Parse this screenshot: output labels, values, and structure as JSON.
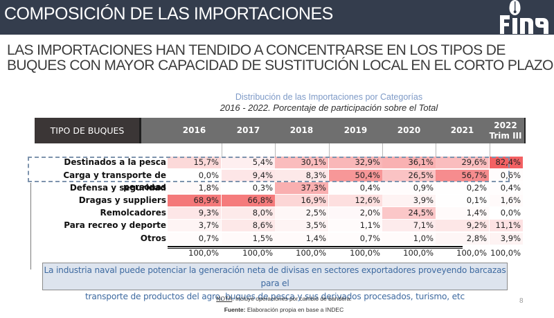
{
  "header": {
    "title": "COMPOSICIÓN DE LAS IMPORTACIONES",
    "logo_text": "FINA"
  },
  "subtitle": {
    "line1": "LAS IMPORTACIONES HAN TENDIDO A CONCENTRARSE EN LOS TIPOS DE",
    "line2": "BUQUES CON MAYOR CAPACIDAD DE SUSTITUCIÓN LOCAL EN EL CORTO PLAZO"
  },
  "table": {
    "title": "Distribución de las Importaciones por Categorías",
    "subtitle": "2016 - 2022. Porcentaje de participación sobre el Total",
    "row_header": "TIPO DE BUQUES",
    "columns": [
      "2016",
      "2017",
      "2018",
      "2019",
      "2020",
      "2021",
      "2022 Trim III"
    ],
    "highlight_color": "#f2595b",
    "rows": [
      {
        "label": "Destinados a la pesca",
        "values": [
          "15,7%",
          "5,4%",
          "30,1%",
          "32,9%",
          "36,1%",
          "29,6%",
          "82,4%"
        ],
        "numeric": [
          15.7,
          5.4,
          30.1,
          32.9,
          36.1,
          29.6,
          82.4
        ]
      },
      {
        "label": "Carga y transporte de personas",
        "values": [
          "0,0%",
          "9,4%",
          "8,3%",
          "50,4%",
          "26,5%",
          "56,7%",
          "0,6%"
        ],
        "numeric": [
          0.0,
          9.4,
          8.3,
          50.4,
          26.5,
          56.7,
          0.6
        ]
      },
      {
        "label": "Defensa y seguridad",
        "values": [
          "1,8%",
          "0,3%",
          "37,3%",
          "0,4%",
          "0,9%",
          "0,2%",
          "0,4%"
        ],
        "numeric": [
          1.8,
          0.3,
          37.3,
          0.4,
          0.9,
          0.2,
          0.4
        ]
      },
      {
        "label": "Dragas y suppliers",
        "values": [
          "68,9%",
          "66,8%",
          "16,9%",
          "12,6%",
          "3,9%",
          "0,1%",
          "1,6%"
        ],
        "numeric": [
          68.9,
          66.8,
          16.9,
          12.6,
          3.9,
          0.1,
          1.6
        ]
      },
      {
        "label": "Remolcadores",
        "values": [
          "9,3%",
          "8,0%",
          "2,5%",
          "2,0%",
          "24,5%",
          "1,4%",
          "0,0%"
        ],
        "numeric": [
          9.3,
          8.0,
          2.5,
          2.0,
          24.5,
          1.4,
          0.0
        ]
      },
      {
        "label": "Para recreo y deporte",
        "values": [
          "3,7%",
          "8,6%",
          "3,5%",
          "1,1%",
          "7,1%",
          "9,2%",
          "11,1%"
        ],
        "numeric": [
          3.7,
          8.6,
          3.5,
          1.1,
          7.1,
          9.2,
          11.1
        ]
      },
      {
        "label": "Otros",
        "values": [
          "0,7%",
          "1,5%",
          "1,4%",
          "0,7%",
          "1,0%",
          "2,8%",
          "3,9%"
        ],
        "numeric": [
          0.7,
          1.5,
          1.4,
          0.7,
          1.0,
          2.8,
          3.9
        ]
      }
    ],
    "totals": [
      "100,0%",
      "100,0%",
      "100,0%",
      "100,0%",
      "100,0%",
      "100,0%",
      "100,0%"
    ]
  },
  "callout": {
    "line1": "La industria naval puede potenciar la generación neta de divisas en sectores exportadores proveyendo barcazas para el",
    "line2": "transporte de productos del agro, buques de pesca y sus derivados procesados, turismo, etc"
  },
  "footer": {
    "note_label": "NOTA",
    "note_text": ": Incluye operaciones por cambio de bandera.",
    "source_label": "Fuente:",
    "source_text": " Elaboración propia en base a INDEC",
    "page_number": "8"
  }
}
